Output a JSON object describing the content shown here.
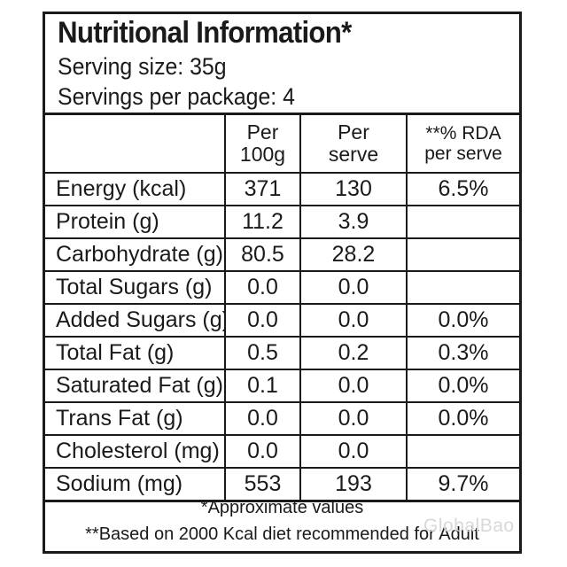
{
  "label": {
    "title": "Nutritional Information*",
    "serving_size": "Serving size: 35g",
    "servings_per_package": "Servings per package: 4"
  },
  "table": {
    "columns": [
      {
        "line1": "",
        "line2": ""
      },
      {
        "line1": "Per",
        "line2": "100g"
      },
      {
        "line1": "Per",
        "line2": "serve"
      },
      {
        "line1": "**% RDA",
        "line2": "per serve"
      }
    ],
    "rows": [
      {
        "nutrient": "Energy (kcal)",
        "per_100g": "371",
        "per_serve": "130",
        "rda": "6.5%"
      },
      {
        "nutrient": "Protein (g)",
        "per_100g": "11.2",
        "per_serve": "3.9",
        "rda": ""
      },
      {
        "nutrient": "Carbohydrate (g)",
        "per_100g": "80.5",
        "per_serve": "28.2",
        "rda": ""
      },
      {
        "nutrient": "Total Sugars (g)",
        "per_100g": "0.0",
        "per_serve": "0.0",
        "rda": ""
      },
      {
        "nutrient": "Added Sugars (g)",
        "per_100g": "0.0",
        "per_serve": "0.0",
        "rda": "0.0%"
      },
      {
        "nutrient": "Total Fat (g)",
        "per_100g": "0.5",
        "per_serve": "0.2",
        "rda": "0.3%"
      },
      {
        "nutrient": "Saturated Fat (g)",
        "per_100g": "0.1",
        "per_serve": "0.0",
        "rda": "0.0%"
      },
      {
        "nutrient": "Trans Fat (g)",
        "per_100g": "0.0",
        "per_serve": "0.0",
        "rda": "0.0%"
      },
      {
        "nutrient": "Cholesterol (mg)",
        "per_100g": "0.0",
        "per_serve": "0.0",
        "rda": ""
      },
      {
        "nutrient": "Sodium (mg)",
        "per_100g": "553",
        "per_serve": "193",
        "rda": "9.7%"
      }
    ]
  },
  "footnotes": {
    "approx": "*Approximate values",
    "rda_basis": "**Based on 2000 Kcal diet recommended for Adult"
  },
  "watermark": "GlobalBao"
}
